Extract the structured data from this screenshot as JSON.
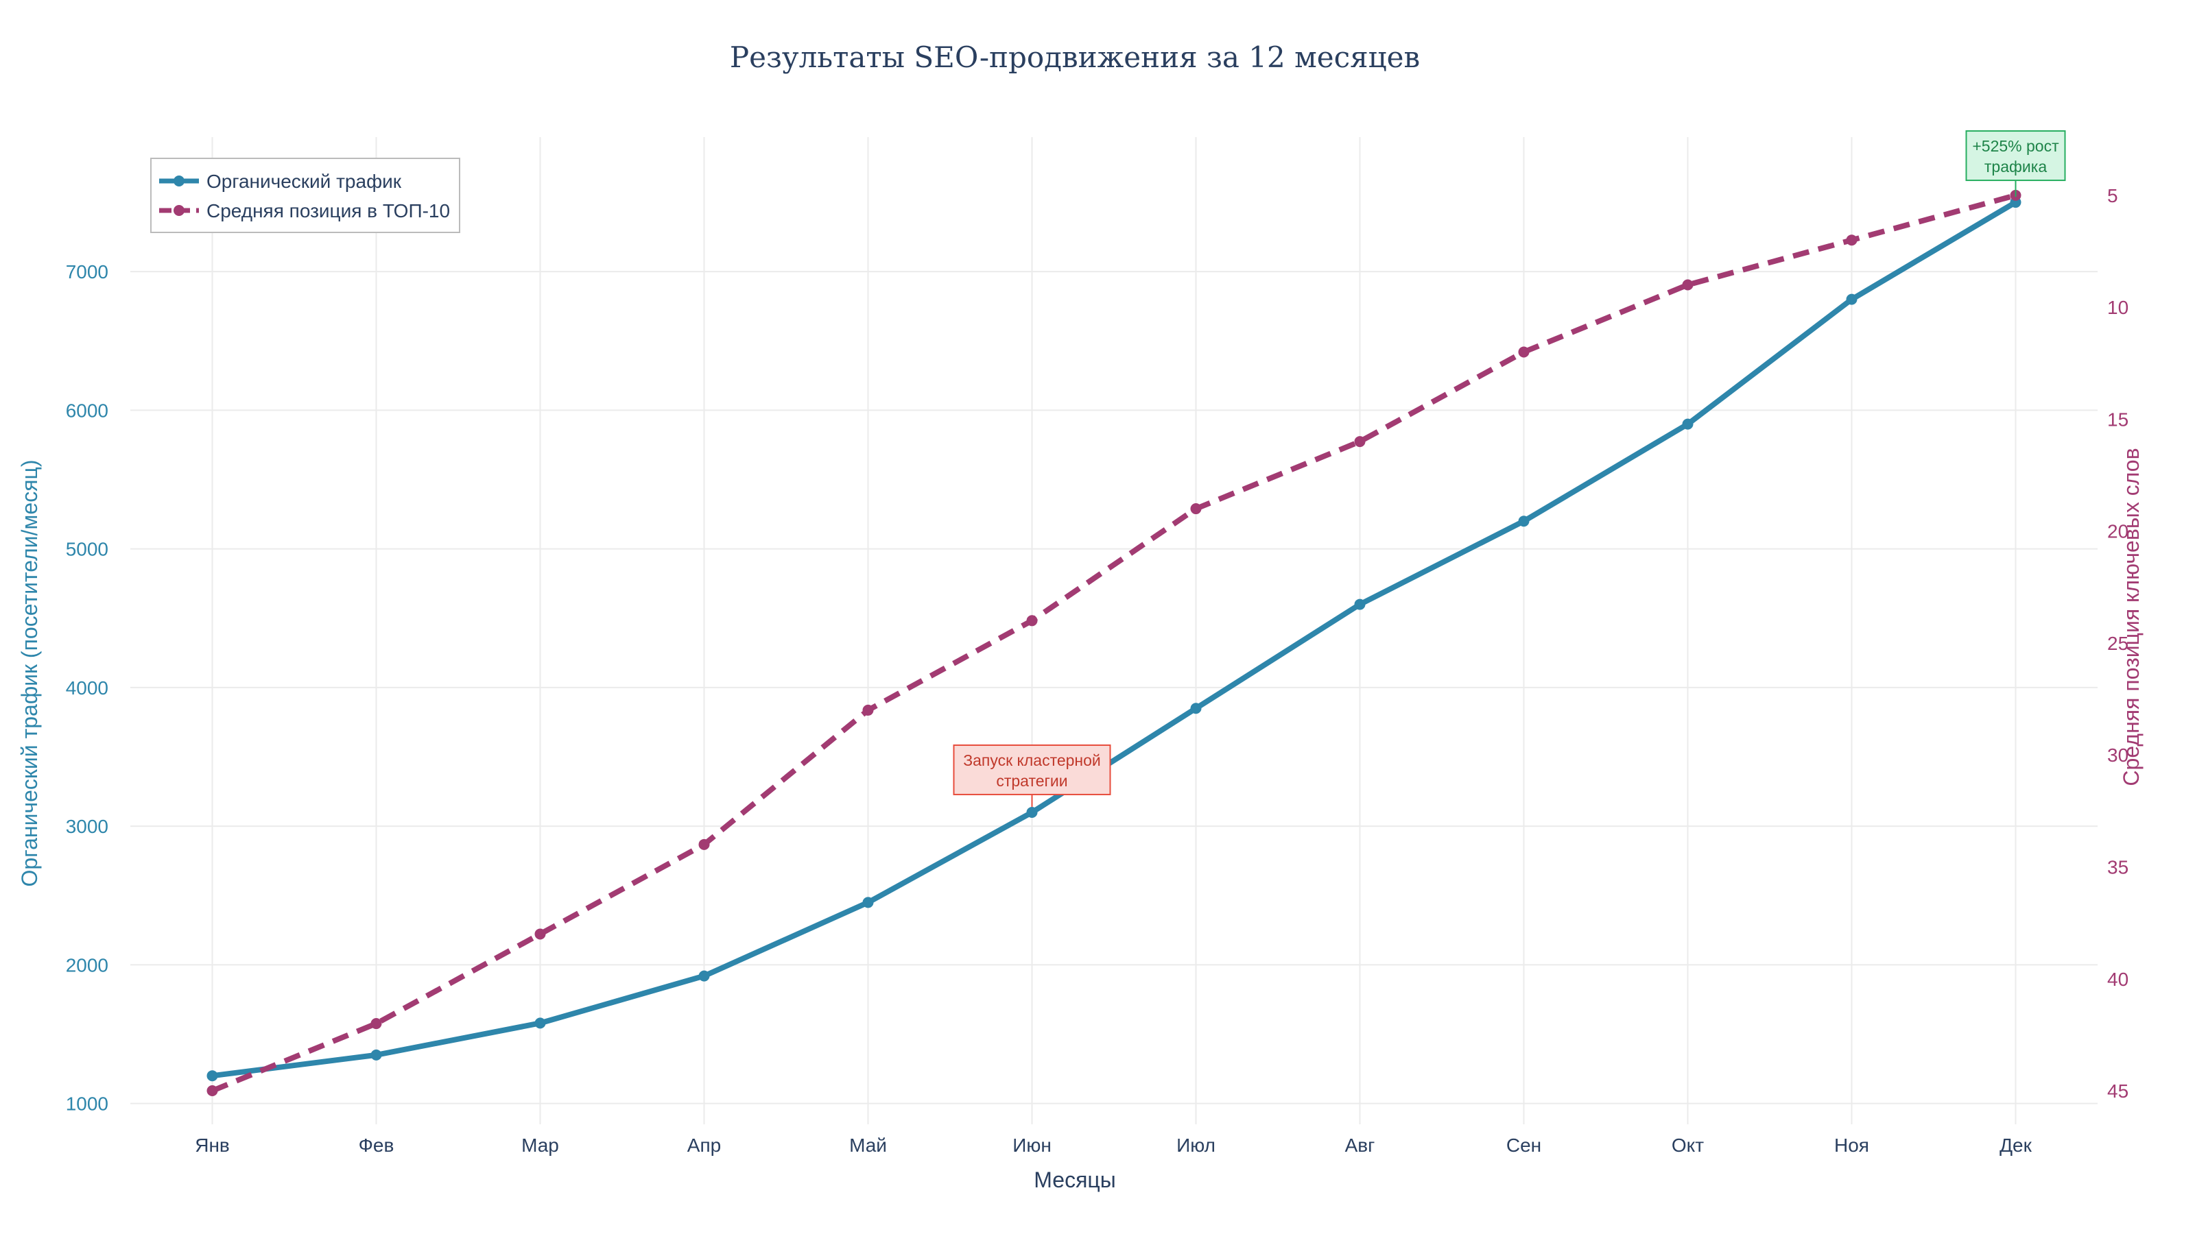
{
  "colors": {
    "traffic": "#2e86ab",
    "position": "#a23b72",
    "grid": "#ebebeb",
    "text": "#2a3f5f",
    "annotation_red_fill": "#fadbd8",
    "annotation_red_border": "#e74c3c",
    "annotation_red_text": "#c0392b",
    "annotation_green_fill": "#d5f5e3",
    "annotation_green_border": "#27ae60",
    "annotation_green_text": "#1e8449"
  },
  "chart_data": {
    "type": "line",
    "title": "Результаты SEO-продвижения за 12 месяцев",
    "xlabel": "Месяцы",
    "ylabel": "Органический трафик (посетители/месяц)",
    "y2label": "Средняя позиция ключевых слов",
    "categories": [
      "Янв",
      "Фев",
      "Мар",
      "Апр",
      "Май",
      "Июн",
      "Июл",
      "Авг",
      "Сен",
      "Окт",
      "Ноя",
      "Дек"
    ],
    "ylim": [
      850,
      7970
    ],
    "y_ticks": [
      1000,
      2000,
      3000,
      4000,
      5000,
      6000,
      7000
    ],
    "y2lim": [
      2.4,
      46.5
    ],
    "y2_reversed": true,
    "y2_ticks": [
      5,
      10,
      15,
      20,
      25,
      30,
      35,
      40,
      45
    ],
    "grid": true,
    "legend_position": "top-left",
    "series": [
      {
        "name": "Органический трафик",
        "axis": "left",
        "style": "solid",
        "values": [
          1200,
          1350,
          1580,
          1920,
          2450,
          3100,
          3850,
          4600,
          5200,
          5900,
          6800,
          7500
        ]
      },
      {
        "name": "Средняя позиция в ТОП-10",
        "axis": "right",
        "style": "dashed",
        "values": [
          45,
          42,
          38,
          34,
          28,
          24,
          19,
          16,
          12,
          9,
          7,
          5
        ]
      }
    ],
    "annotations": [
      {
        "category": "Июн",
        "series": 0,
        "lines": [
          "Запуск кластерной",
          "стратегии"
        ],
        "style": "red"
      },
      {
        "category": "Дек",
        "series": 0,
        "lines": [
          "+525% рост",
          "трафика"
        ],
        "style": "green"
      }
    ]
  }
}
